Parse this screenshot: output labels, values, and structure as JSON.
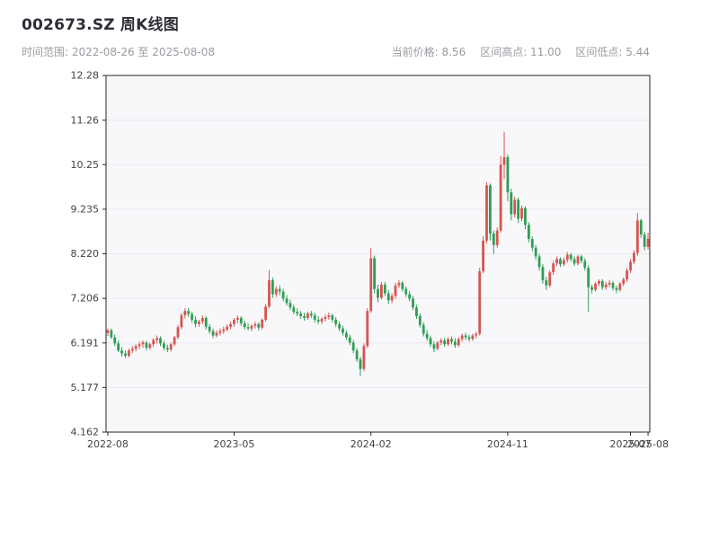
{
  "header": {
    "title": "002673.SZ 周K线图",
    "subtitle_left": "时间范围: 2022-08-26 至 2025-08-08",
    "stats": {
      "current": "当前价格: 8.56",
      "high": "区间高点: 11.00",
      "low": "区间低点: 5.44"
    }
  },
  "chart_data": {
    "type": "candlestick",
    "symbol": "002673.SZ",
    "interval": "weekly",
    "date_range": [
      "2022-08-26",
      "2025-08-08"
    ],
    "current_price": 8.56,
    "range_high": 11.0,
    "range_low": 5.44,
    "ylim": [
      4.162,
      12.28
    ],
    "y_ticks": [
      "12.28",
      "11.26",
      "10.25",
      "9.235",
      "8.220",
      "7.206",
      "6.191",
      "5.177",
      "4.162"
    ],
    "y_tick_values": [
      12.28,
      11.26,
      10.25,
      9.235,
      8.22,
      7.206,
      6.191,
      5.177,
      4.162
    ],
    "x_ticks": [
      {
        "index": 0,
        "label": "2022-08"
      },
      {
        "index": 36,
        "label": "2023-05"
      },
      {
        "index": 75,
        "label": "2024-02"
      },
      {
        "index": 114,
        "label": "2024-11"
      },
      {
        "index": 149,
        "label": "2025-07"
      },
      {
        "index": 154,
        "label": "2025-08"
      }
    ],
    "grid": true,
    "legend": false,
    "colors": {
      "up": "#d65550",
      "down": "#2e9e53",
      "grid": "#e8e8ee",
      "plot_bg": "#f8f8fb",
      "frame": "#262626",
      "tick_text": "#424242"
    },
    "ohlc": [
      [
        6.42,
        6.52,
        6.35,
        6.48
      ],
      [
        6.48,
        6.52,
        6.28,
        6.32
      ],
      [
        6.32,
        6.38,
        6.12,
        6.18
      ],
      [
        6.18,
        6.25,
        5.98,
        6.02
      ],
      [
        6.02,
        6.1,
        5.88,
        5.95
      ],
      [
        5.95,
        6.02,
        5.85,
        5.9
      ],
      [
        5.9,
        6.06,
        5.86,
        6.02
      ],
      [
        6.02,
        6.12,
        5.96,
        6.06
      ],
      [
        6.06,
        6.16,
        6.0,
        6.12
      ],
      [
        6.12,
        6.22,
        6.05,
        6.16
      ],
      [
        6.16,
        6.25,
        6.08,
        6.2
      ],
      [
        6.2,
        6.24,
        6.02,
        6.08
      ],
      [
        6.08,
        6.2,
        6.04,
        6.16
      ],
      [
        6.16,
        6.3,
        6.1,
        6.26
      ],
      [
        6.26,
        6.36,
        6.18,
        6.3
      ],
      [
        6.3,
        6.34,
        6.12,
        6.18
      ],
      [
        6.18,
        6.24,
        6.02,
        6.08
      ],
      [
        6.08,
        6.15,
        5.98,
        6.04
      ],
      [
        6.04,
        6.2,
        6.0,
        6.16
      ],
      [
        6.16,
        6.35,
        6.12,
        6.32
      ],
      [
        6.32,
        6.6,
        6.28,
        6.55
      ],
      [
        6.55,
        6.88,
        6.5,
        6.82
      ],
      [
        6.82,
        6.98,
        6.75,
        6.92
      ],
      [
        6.92,
        6.99,
        6.78,
        6.85
      ],
      [
        6.85,
        6.9,
        6.65,
        6.72
      ],
      [
        6.72,
        6.8,
        6.55,
        6.62
      ],
      [
        6.62,
        6.72,
        6.56,
        6.68
      ],
      [
        6.68,
        6.82,
        6.62,
        6.76
      ],
      [
        6.76,
        6.8,
        6.5,
        6.56
      ],
      [
        6.56,
        6.62,
        6.4,
        6.46
      ],
      [
        6.46,
        6.52,
        6.3,
        6.36
      ],
      [
        6.36,
        6.48,
        6.32,
        6.42
      ],
      [
        6.42,
        6.52,
        6.36,
        6.46
      ],
      [
        6.46,
        6.56,
        6.4,
        6.5
      ],
      [
        6.5,
        6.62,
        6.45,
        6.56
      ],
      [
        6.56,
        6.68,
        6.5,
        6.62
      ],
      [
        6.62,
        6.76,
        6.56,
        6.72
      ],
      [
        6.72,
        6.82,
        6.64,
        6.76
      ],
      [
        6.76,
        6.8,
        6.58,
        6.64
      ],
      [
        6.64,
        6.7,
        6.5,
        6.55
      ],
      [
        6.55,
        6.64,
        6.48,
        6.52
      ],
      [
        6.52,
        6.62,
        6.46,
        6.58
      ],
      [
        6.58,
        6.68,
        6.52,
        6.62
      ],
      [
        6.62,
        6.66,
        6.48,
        6.54
      ],
      [
        6.54,
        6.75,
        6.5,
        6.72
      ],
      [
        6.72,
        7.08,
        6.68,
        7.02
      ],
      [
        7.02,
        7.85,
        6.98,
        7.62
      ],
      [
        7.62,
        7.68,
        7.22,
        7.3
      ],
      [
        7.3,
        7.48,
        7.24,
        7.42
      ],
      [
        7.42,
        7.5,
        7.28,
        7.36
      ],
      [
        7.36,
        7.42,
        7.14,
        7.2
      ],
      [
        7.2,
        7.28,
        7.04,
        7.1
      ],
      [
        7.1,
        7.18,
        6.94,
        7.0
      ],
      [
        7.0,
        7.06,
        6.84,
        6.9
      ],
      [
        6.9,
        6.98,
        6.8,
        6.86
      ],
      [
        6.86,
        6.92,
        6.74,
        6.8
      ],
      [
        6.8,
        6.88,
        6.7,
        6.76
      ],
      [
        6.76,
        6.9,
        6.72,
        6.86
      ],
      [
        6.86,
        6.92,
        6.76,
        6.82
      ],
      [
        6.82,
        6.88,
        6.66,
        6.72
      ],
      [
        6.72,
        6.8,
        6.62,
        6.68
      ],
      [
        6.68,
        6.78,
        6.62,
        6.74
      ],
      [
        6.74,
        6.84,
        6.68,
        6.78
      ],
      [
        6.78,
        6.88,
        6.72,
        6.82
      ],
      [
        6.82,
        6.86,
        6.66,
        6.72
      ],
      [
        6.72,
        6.78,
        6.56,
        6.62
      ],
      [
        6.62,
        6.68,
        6.46,
        6.52
      ],
      [
        6.52,
        6.58,
        6.36,
        6.42
      ],
      [
        6.42,
        6.48,
        6.26,
        6.32
      ],
      [
        6.32,
        6.38,
        6.14,
        6.2
      ],
      [
        6.2,
        6.26,
        5.96,
        6.02
      ],
      [
        6.02,
        6.08,
        5.76,
        5.82
      ],
      [
        5.82,
        5.88,
        5.44,
        5.6
      ],
      [
        5.6,
        6.18,
        5.55,
        6.12
      ],
      [
        6.12,
        6.98,
        6.08,
        6.92
      ],
      [
        6.92,
        8.35,
        6.88,
        8.12
      ],
      [
        8.12,
        8.18,
        7.32,
        7.42
      ],
      [
        7.42,
        7.52,
        7.12,
        7.22
      ],
      [
        7.22,
        7.58,
        7.18,
        7.52
      ],
      [
        7.52,
        7.58,
        7.26,
        7.32
      ],
      [
        7.32,
        7.4,
        7.08,
        7.16
      ],
      [
        7.16,
        7.32,
        7.1,
        7.26
      ],
      [
        7.26,
        7.56,
        7.2,
        7.5
      ],
      [
        7.5,
        7.62,
        7.44,
        7.56
      ],
      [
        7.56,
        7.6,
        7.36,
        7.42
      ],
      [
        7.42,
        7.48,
        7.24,
        7.3
      ],
      [
        7.3,
        7.38,
        7.14,
        7.2
      ],
      [
        7.2,
        7.26,
        6.94,
        7.0
      ],
      [
        7.0,
        7.06,
        6.74,
        6.8
      ],
      [
        6.8,
        6.86,
        6.54,
        6.6
      ],
      [
        6.6,
        6.66,
        6.34,
        6.4
      ],
      [
        6.4,
        6.48,
        6.24,
        6.3
      ],
      [
        6.3,
        6.36,
        6.1,
        6.16
      ],
      [
        6.16,
        6.22,
        5.98,
        6.06
      ],
      [
        6.06,
        6.24,
        6.02,
        6.2
      ],
      [
        6.2,
        6.3,
        6.14,
        6.25
      ],
      [
        6.25,
        6.3,
        6.1,
        6.16
      ],
      [
        6.16,
        6.32,
        6.12,
        6.28
      ],
      [
        6.28,
        6.34,
        6.16,
        6.22
      ],
      [
        6.22,
        6.3,
        6.08,
        6.14
      ],
      [
        6.14,
        6.32,
        6.1,
        6.28
      ],
      [
        6.28,
        6.4,
        6.22,
        6.36
      ],
      [
        6.36,
        6.42,
        6.26,
        6.32
      ],
      [
        6.32,
        6.38,
        6.22,
        6.28
      ],
      [
        6.28,
        6.4,
        6.24,
        6.36
      ],
      [
        6.36,
        6.44,
        6.3,
        6.4
      ],
      [
        6.4,
        7.9,
        6.36,
        7.82
      ],
      [
        7.82,
        8.62,
        7.78,
        8.52
      ],
      [
        8.52,
        9.85,
        8.46,
        9.78
      ],
      [
        9.78,
        9.82,
        8.52,
        8.68
      ],
      [
        8.68,
        8.75,
        8.22,
        8.42
      ],
      [
        8.42,
        8.82,
        8.36,
        8.75
      ],
      [
        8.75,
        10.45,
        8.7,
        10.25
      ],
      [
        10.25,
        11.0,
        9.92,
        10.42
      ],
      [
        10.42,
        10.48,
        9.42,
        9.62
      ],
      [
        9.62,
        9.7,
        8.98,
        9.12
      ],
      [
        9.12,
        9.52,
        9.05,
        9.45
      ],
      [
        9.45,
        9.5,
        8.92,
        9.02
      ],
      [
        9.02,
        9.32,
        8.96,
        9.26
      ],
      [
        9.26,
        9.3,
        8.78,
        8.88
      ],
      [
        8.88,
        8.94,
        8.48,
        8.56
      ],
      [
        8.56,
        8.62,
        8.28,
        8.36
      ],
      [
        8.36,
        8.42,
        8.08,
        8.16
      ],
      [
        8.16,
        8.22,
        7.84,
        7.92
      ],
      [
        7.92,
        7.98,
        7.54,
        7.62
      ],
      [
        7.62,
        7.7,
        7.4,
        7.5
      ],
      [
        7.5,
        7.85,
        7.46,
        7.8
      ],
      [
        7.8,
        8.06,
        7.74,
        8.0
      ],
      [
        8.0,
        8.16,
        7.94,
        8.1
      ],
      [
        8.1,
        8.14,
        7.92,
        7.98
      ],
      [
        7.98,
        8.14,
        7.94,
        8.08
      ],
      [
        8.08,
        8.26,
        8.02,
        8.2
      ],
      [
        8.2,
        8.24,
        8.04,
        8.1
      ],
      [
        8.1,
        8.16,
        7.94,
        8.0
      ],
      [
        8.0,
        8.2,
        7.96,
        8.16
      ],
      [
        8.16,
        8.2,
        8.0,
        8.06
      ],
      [
        8.06,
        8.12,
        7.84,
        7.9
      ],
      [
        7.9,
        7.96,
        6.9,
        7.46
      ],
      [
        7.46,
        7.52,
        7.32,
        7.4
      ],
      [
        7.4,
        7.58,
        7.36,
        7.54
      ],
      [
        7.54,
        7.64,
        7.48,
        7.6
      ],
      [
        7.6,
        7.64,
        7.4,
        7.46
      ],
      [
        7.46,
        7.58,
        7.4,
        7.52
      ],
      [
        7.52,
        7.62,
        7.46,
        7.56
      ],
      [
        7.56,
        7.6,
        7.38,
        7.44
      ],
      [
        7.44,
        7.5,
        7.32,
        7.4
      ],
      [
        7.4,
        7.58,
        7.36,
        7.54
      ],
      [
        7.54,
        7.68,
        7.48,
        7.64
      ],
      [
        7.64,
        7.9,
        7.58,
        7.84
      ],
      [
        7.84,
        8.1,
        7.78,
        8.04
      ],
      [
        8.04,
        8.3,
        7.98,
        8.24
      ],
      [
        8.24,
        9.15,
        8.18,
        8.98
      ],
      [
        8.98,
        9.02,
        8.58,
        8.66
      ],
      [
        8.66,
        8.72,
        8.3,
        8.38
      ],
      [
        8.38,
        8.7,
        8.32,
        8.56
      ]
    ]
  }
}
